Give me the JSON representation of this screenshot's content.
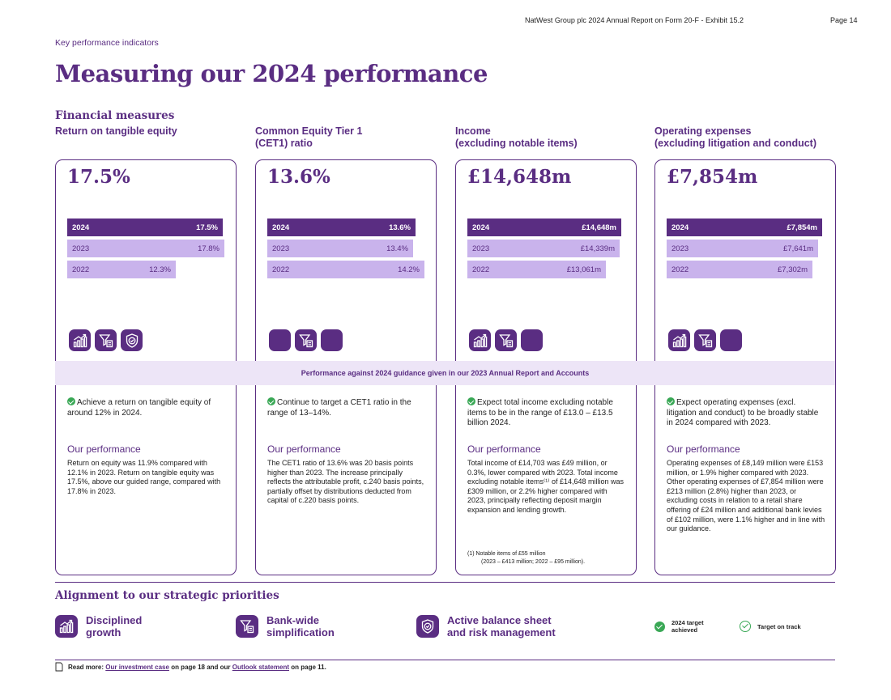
{
  "header": {
    "doc": "NatWest Group plc 2024 Annual Report on Form 20-F - Exhibit 15.2",
    "page": "Page 14"
  },
  "section_label": "Key performance indicators",
  "title": "Measuring our 2024 performance",
  "financial_measures": "Financial measures",
  "cards": [
    {
      "title_line1": "Return on tangible equity",
      "title_line2": "",
      "headline": "17.5%",
      "bars": [
        {
          "year": "2024",
          "label": "17.5%",
          "value": 17.5
        },
        {
          "year": "2023",
          "label": "17.8%",
          "value": 17.8
        },
        {
          "year": "2022",
          "label": "12.3%",
          "value": 12.3
        }
      ],
      "guidance": "Achieve a return on tangible equity of around 12% in 2024.",
      "perf_title": "Our performance",
      "perf_text": "Return on equity was 11.9% compared with 12.1% in 2023. Return on tangible equity was 17.5%, above our guided range, compared with 17.8% in 2023.",
      "icons": [
        "growth-chart",
        "filter-doc",
        "shield-check"
      ]
    },
    {
      "title_line1": "Common Equity Tier 1",
      "title_line2": "(CET1) ratio",
      "headline": "13.6%",
      "bars": [
        {
          "year": "2024",
          "label": "13.6%",
          "value": 13.6
        },
        {
          "year": "2023",
          "label": "13.4%",
          "value": 13.4
        },
        {
          "year": "2022",
          "label": "14.2%",
          "value": 14.2
        }
      ],
      "guidance": "Continue to target a CET1 ratio in the range of 13–14%.",
      "perf_title": "Our performance",
      "perf_text": "The CET1 ratio of 13.6% was 20 basis points higher than 2023. The increase principally reflects the attributable profit, c.240 basis points, partially offset by distributions deducted from capital of c.220 basis points.",
      "icons": [
        "blank",
        "filter-doc",
        "blank"
      ]
    },
    {
      "title_line1": "Income",
      "title_line2": "(excluding notable items)",
      "headline": "£14,648m",
      "bars": [
        {
          "year": "2024",
          "label": "£14,648m",
          "value": 14648
        },
        {
          "year": "2023",
          "label": "£14,339m",
          "value": 14339
        },
        {
          "year": "2022",
          "label": "£13,061m",
          "value": 13061
        }
      ],
      "guidance": "Expect total income excluding notable items to be in the range of £13.0 – £13.5 billion 2024.",
      "perf_title": "Our performance",
      "perf_text": "Total income of £14,703 was £49 million, or 0.3%, lower compared with 2023. Total income excluding notable items⁽¹⁾ of £14,648 million was £309 million, or 2.2% higher compared with 2023, principally reflecting deposit margin expansion and lending growth.",
      "footnote_l1": "(1)   Notable items of £55 million",
      "footnote_l2": "(2023 – £413 million; 2022 – £95 million).",
      "icons": [
        "growth-chart",
        "filter-doc",
        "blank"
      ]
    },
    {
      "title_line1": "Operating expenses",
      "title_line2": "(excluding litigation and conduct)",
      "headline": "£7,854m",
      "bars": [
        {
          "year": "2024",
          "label": "£7,854m",
          "value": 7854
        },
        {
          "year": "2023",
          "label": "£7,641m",
          "value": 7641
        },
        {
          "year": "2022",
          "label": "£7,302m",
          "value": 7302
        }
      ],
      "guidance": "Expect operating expenses (excl. litigation and conduct) to be broadly stable in 2024 compared with 2023.",
      "perf_title": "Our performance",
      "perf_text": "Operating expenses of £8,149 million were £153 million, or 1.9% higher compared with 2023. Other operating expenses of £7,854 million were £213 million (2.8%) higher than 2023, or excluding costs in relation to a retail share offering of £24 million and additional bank levies of £102 million, were 1.1% higher and in line with our guidance.",
      "icons": [
        "growth-chart",
        "filter-doc",
        "blank"
      ]
    }
  ],
  "guidance_band": "Performance against 2024 guidance given in our 2023 Annual Report and Accounts",
  "alignment": {
    "title": "Alignment to our strategic priorities",
    "priorities": [
      {
        "l1": "Disciplined",
        "l2": "growth",
        "icon": "growth-chart"
      },
      {
        "l1": "Bank-wide",
        "l2": "simplification",
        "icon": "filter-doc"
      },
      {
        "l1": "Active balance sheet",
        "l2": "and risk management",
        "icon": "shield-check"
      }
    ],
    "legend": {
      "achieved_l1": "2024 target",
      "achieved_l2": "achieved",
      "on_track": "Target on track"
    }
  },
  "read_more": {
    "prefix": "Read more:",
    "link1": "Our investment case",
    "mid": "on page 18 and our",
    "link2": "Outlook statement",
    "suffix": "on page 11."
  },
  "colors": {
    "primary": "#5a2d82",
    "bar_light": "#c9b3ec",
    "band": "#ede5f7",
    "green": "#3aa856"
  }
}
